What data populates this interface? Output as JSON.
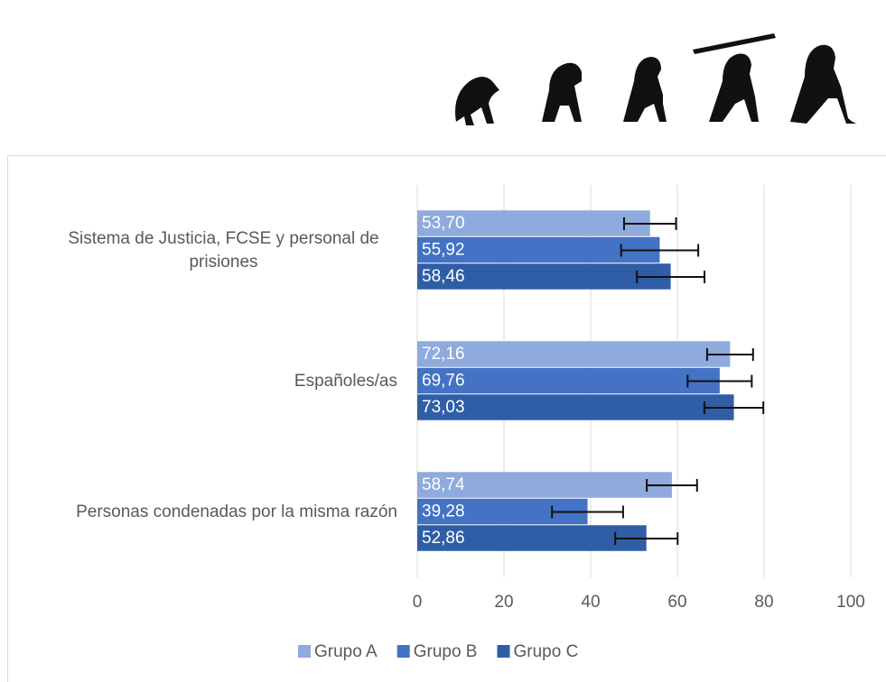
{
  "chart_data": {
    "type": "hbar",
    "categories": [
      "Sistema de Justicia, FCSE y personal de prisiones",
      "Españoles/as",
      "Personas condenadas por la misma razón"
    ],
    "series": [
      {
        "name": "Grupo A",
        "color": "#8faadc",
        "values": [
          53.7,
          72.16,
          58.74
        ],
        "value_labels": [
          "53,70",
          "72,16",
          "58,74"
        ],
        "errors": [
          6.0,
          5.3,
          5.8
        ]
      },
      {
        "name": "Grupo B",
        "color": "#4472c4",
        "values": [
          55.92,
          69.76,
          39.28
        ],
        "value_labels": [
          "55,92",
          "69,76",
          "39,28"
        ],
        "errors": [
          8.9,
          7.4,
          8.2
        ]
      },
      {
        "name": "Grupo C",
        "color": "#2f5ea6",
        "values": [
          58.46,
          73.03,
          52.86
        ],
        "value_labels": [
          "58,46",
          "73,03",
          "52,86"
        ],
        "errors": [
          7.8,
          6.8,
          7.2
        ]
      }
    ],
    "xlim": [
      0,
      100
    ],
    "xticks": [
      0,
      20,
      40,
      60,
      80,
      100
    ],
    "grid": true,
    "legend": "bottom"
  }
}
